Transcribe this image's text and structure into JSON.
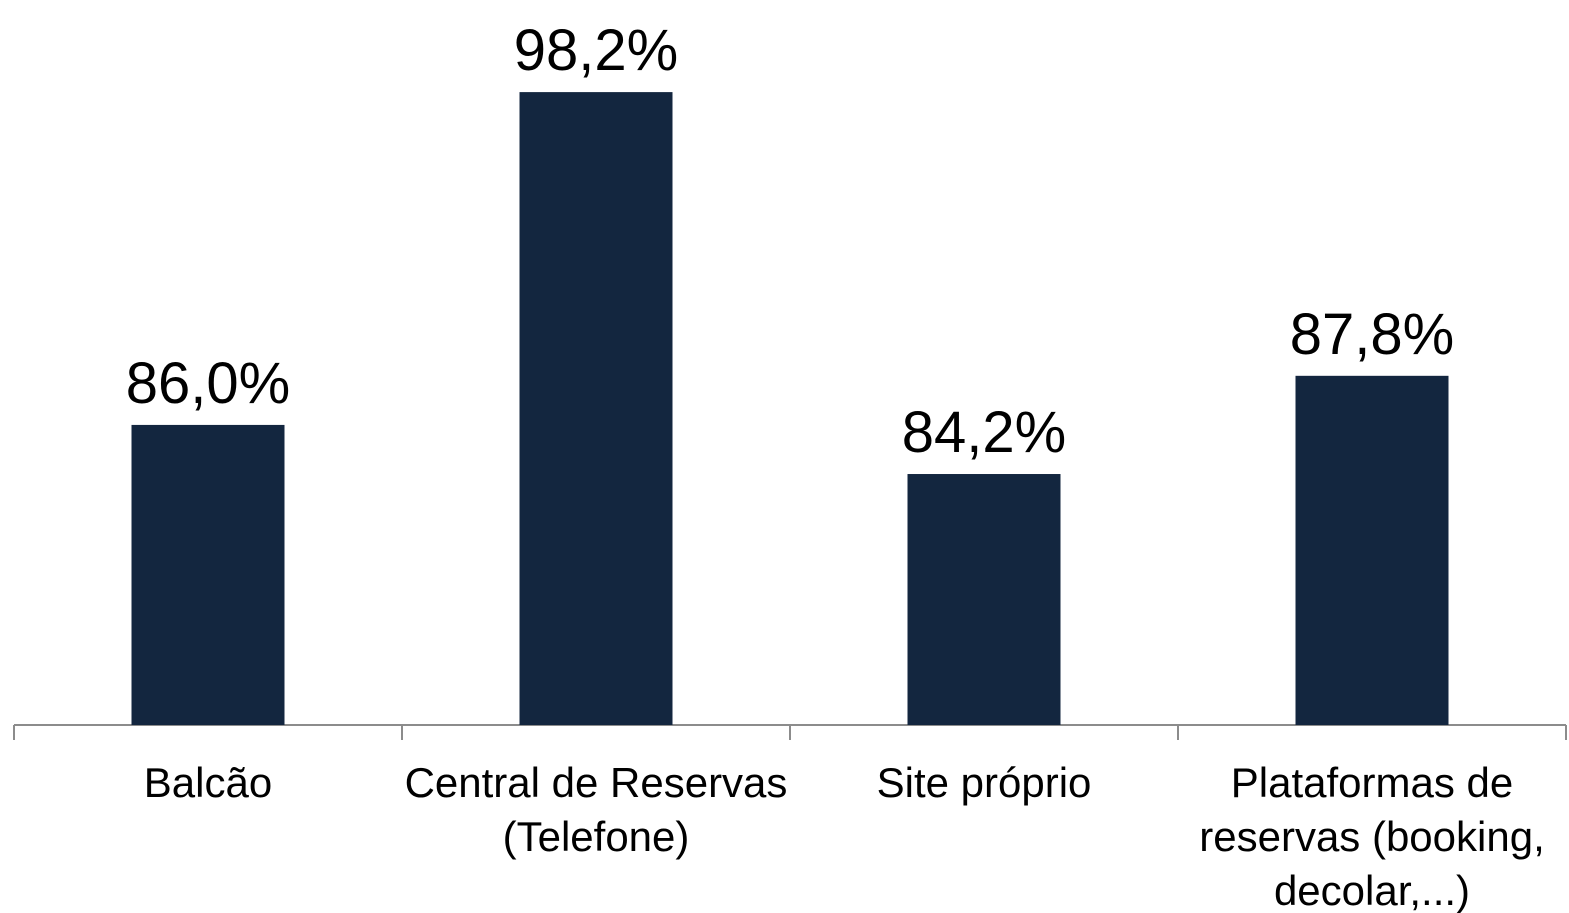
{
  "chart_data": {
    "type": "bar",
    "categories": [
      "Balcão",
      "Central de Reservas (Telefone)",
      "Site próprio",
      "Plataformas de reservas (booking, decolar,...)"
    ],
    "values": [
      86.0,
      98.2,
      84.2,
      87.8
    ],
    "value_labels": [
      "86,0%",
      "98,2%",
      "84,2%",
      "87,8%"
    ],
    "color": "#13263f",
    "ylim": [
      75,
      100
    ]
  }
}
